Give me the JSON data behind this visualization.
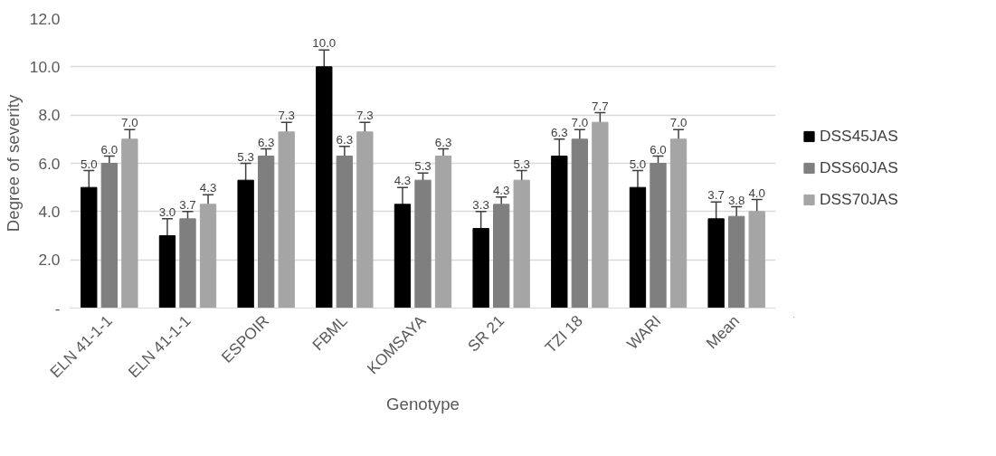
{
  "chart_data": {
    "type": "bar",
    "xlabel": "Genotype",
    "ylabel": "Degree of severity",
    "categories": [
      "ELN 41-1-1",
      "ELN 41-1-1",
      "ESPOIR",
      "FBML",
      "KOMSAYA",
      "SR 21",
      "TZI 18",
      "WARI",
      "Mean"
    ],
    "series": [
      {
        "name": "DSS45JAS",
        "color": "#000000",
        "values": [
          5.0,
          3.0,
          5.3,
          10.0,
          4.3,
          3.3,
          6.3,
          5.0,
          3.7
        ],
        "errors": [
          0.7,
          0.7,
          0.7,
          0.7,
          0.7,
          0.7,
          0.7,
          0.7,
          0.7
        ],
        "value_labels": [
          "5.0",
          "3.0",
          "5.3",
          "10.0",
          "4.3",
          "3.3",
          "6.3",
          "5.0",
          "3.7"
        ]
      },
      {
        "name": "DSS60JAS",
        "color": "#7f7f7f",
        "values": [
          6.0,
          3.7,
          6.3,
          6.3,
          5.3,
          4.3,
          7.0,
          6.0,
          3.8
        ],
        "errors": [
          0.3,
          0.3,
          0.3,
          0.4,
          0.3,
          0.3,
          0.4,
          0.3,
          0.4
        ],
        "value_labels": [
          "6.0",
          "3.7",
          "6.3",
          "6.3",
          "5.3",
          "4.3",
          "7.0",
          "6.0",
          "3.8"
        ]
      },
      {
        "name": "DSS70JAS",
        "color": "#a5a5a5",
        "values": [
          7.0,
          4.3,
          7.3,
          7.3,
          6.3,
          5.3,
          7.7,
          7.0,
          4.0
        ],
        "errors": [
          0.4,
          0.4,
          0.4,
          0.4,
          0.3,
          0.4,
          0.4,
          0.4,
          0.5
        ],
        "value_labels": [
          "7.0",
          "4.3",
          "7.3",
          "7.3",
          "6.3",
          "5.3",
          "7.7",
          "7.0",
          "4.0"
        ]
      }
    ],
    "ylim": [
      0,
      12
    ],
    "yticks": [
      {
        "value": 0,
        "label": "-"
      },
      {
        "value": 2,
        "label": "2.0"
      },
      {
        "value": 4,
        "label": "4.0"
      },
      {
        "value": 6,
        "label": "6.0"
      },
      {
        "value": 8,
        "label": "8.0"
      },
      {
        "value": 10,
        "label": "10.0"
      },
      {
        "value": 12,
        "label": "12.0"
      }
    ],
    "grid": "y",
    "legend": "right"
  }
}
